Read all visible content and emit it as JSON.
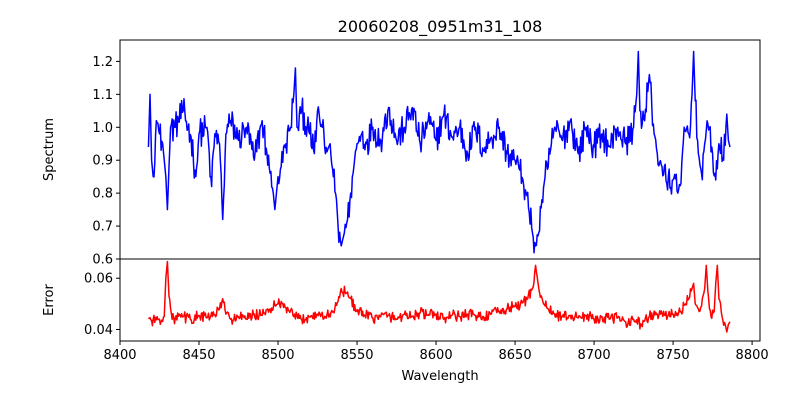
{
  "chart_data": [
    {
      "type": "line",
      "panel": "top",
      "title": "20060208_0951m31_108",
      "ylabel": "Spectrum",
      "xlim": [
        8400,
        8805
      ],
      "ylim": [
        0.6,
        1.265
      ],
      "yticks": [
        0.6,
        0.7,
        0.8,
        0.9,
        1.0,
        1.1,
        1.2
      ],
      "ytick_labels": [
        "0.6",
        "0.7",
        "0.8",
        "0.9",
        "1.0",
        "1.1",
        "1.2"
      ],
      "grid": false,
      "series": [
        {
          "color": "#0000ff",
          "x_start": 8418,
          "x_end": 8786,
          "anchors": [
            [
              8418,
              0.94
            ],
            [
              8419,
              1.1
            ],
            [
              8420,
              0.9
            ],
            [
              8421,
              0.85
            ],
            [
              8423,
              1.02
            ],
            [
              8425,
              0.98
            ],
            [
              8427,
              0.95
            ],
            [
              8428,
              0.9
            ],
            [
              8429,
              0.85
            ],
            [
              8430,
              0.75
            ],
            [
              8432,
              1.0
            ],
            [
              8435,
              1.0
            ],
            [
              8440,
              1.05
            ],
            [
              8445,
              0.97
            ],
            [
              8448,
              0.85
            ],
            [
              8450,
              0.98
            ],
            [
              8455,
              1.0
            ],
            [
              8458,
              0.82
            ],
            [
              8460,
              0.98
            ],
            [
              8463,
              0.95
            ],
            [
              8465,
              0.72
            ],
            [
              8467,
              0.98
            ],
            [
              8470,
              1.02
            ],
            [
              8475,
              0.96
            ],
            [
              8480,
              1.0
            ],
            [
              8485,
              0.9
            ],
            [
              8490,
              1.02
            ],
            [
              8493,
              0.92
            ],
            [
              8495,
              0.86
            ],
            [
              8497,
              0.8
            ],
            [
              8498,
              0.75
            ],
            [
              8499,
              0.8
            ],
            [
              8500,
              0.85
            ],
            [
              8502,
              0.88
            ],
            [
              8505,
              0.95
            ],
            [
              8508,
              1.0
            ],
            [
              8510,
              1.1
            ],
            [
              8511,
              1.18
            ],
            [
              8512,
              1.0
            ],
            [
              8515,
              1.05
            ],
            [
              8520,
              0.98
            ],
            [
              8523,
              0.92
            ],
            [
              8525,
              1.05
            ],
            [
              8528,
              1.0
            ],
            [
              8530,
              0.92
            ],
            [
              8533,
              0.95
            ],
            [
              8535,
              0.85
            ],
            [
              8537,
              0.78
            ],
            [
              8538,
              0.7
            ],
            [
              8540,
              0.64
            ],
            [
              8541,
              0.66
            ],
            [
              8542,
              0.68
            ],
            [
              8544,
              0.72
            ],
            [
              8546,
              0.8
            ],
            [
              8548,
              0.88
            ],
            [
              8550,
              0.95
            ],
            [
              8553,
              0.98
            ],
            [
              8556,
              0.95
            ],
            [
              8560,
              1.0
            ],
            [
              8565,
              0.96
            ],
            [
              8570,
              1.06
            ],
            [
              8575,
              0.96
            ],
            [
              8580,
              1.0
            ],
            [
              8585,
              1.06
            ],
            [
              8590,
              0.95
            ],
            [
              8595,
              1.02
            ],
            [
              8600,
              0.96
            ],
            [
              8605,
              1.04
            ],
            [
              8610,
              0.97
            ],
            [
              8615,
              1.0
            ],
            [
              8620,
              0.92
            ],
            [
              8625,
              1.0
            ],
            [
              8630,
              0.93
            ],
            [
              8635,
              0.97
            ],
            [
              8640,
              1.0
            ],
            [
              8645,
              0.92
            ],
            [
              8650,
              0.9
            ],
            [
              8653,
              0.87
            ],
            [
              8655,
              0.84
            ],
            [
              8657,
              0.8
            ],
            [
              8659,
              0.74
            ],
            [
              8661,
              0.68
            ],
            [
              8663,
              0.64
            ],
            [
              8665,
              0.68
            ],
            [
              8667,
              0.78
            ],
            [
              8669,
              0.85
            ],
            [
              8671,
              0.88
            ],
            [
              8673,
              0.95
            ],
            [
              8675,
              1.0
            ],
            [
              8680,
              0.96
            ],
            [
              8685,
              1.02
            ],
            [
              8690,
              0.92
            ],
            [
              8695,
              1.0
            ],
            [
              8700,
              0.94
            ],
            [
              8705,
              0.98
            ],
            [
              8710,
              0.94
            ],
            [
              8715,
              1.0
            ],
            [
              8720,
              0.95
            ],
            [
              8725,
              1.0
            ],
            [
              8727,
              1.1
            ],
            [
              8728,
              1.23
            ],
            [
              8729,
              1.05
            ],
            [
              8732,
              1.02
            ],
            [
              8735,
              1.16
            ],
            [
              8738,
              0.98
            ],
            [
              8740,
              0.92
            ],
            [
              8743,
              0.88
            ],
            [
              8746,
              0.83
            ],
            [
              8750,
              0.84
            ],
            [
              8753,
              0.8
            ],
            [
              8755,
              0.83
            ],
            [
              8757,
              1.0
            ],
            [
              8760,
              0.98
            ],
            [
              8762,
              1.1
            ],
            [
              8763,
              1.23
            ],
            [
              8764,
              1.08
            ],
            [
              8766,
              0.92
            ],
            [
              8768,
              0.86
            ],
            [
              8770,
              0.95
            ],
            [
              8773,
              1.0
            ],
            [
              8775,
              0.92
            ],
            [
              8777,
              0.84
            ],
            [
              8779,
              0.95
            ],
            [
              8782,
              0.9
            ],
            [
              8784,
              1.04
            ],
            [
              8785,
              0.96
            ],
            [
              8786,
              0.94
            ]
          ]
        }
      ]
    },
    {
      "type": "line",
      "panel": "bottom",
      "xlabel": "Wavelength",
      "ylabel": "Error",
      "xlim": [
        8400,
        8805
      ],
      "ylim": [
        0.0355,
        0.0675
      ],
      "xticks": [
        8400,
        8450,
        8500,
        8550,
        8600,
        8650,
        8700,
        8750,
        8800
      ],
      "xtick_labels": [
        "8400",
        "8450",
        "8500",
        "8550",
        "8600",
        "8650",
        "8700",
        "8750",
        "8800"
      ],
      "yticks": [
        0.04,
        0.06
      ],
      "ytick_labels": [
        "0.04",
        "0.06"
      ],
      "grid": false,
      "series": [
        {
          "color": "#ff0000",
          "x_start": 8418,
          "x_end": 8786,
          "anchors": [
            [
              8418,
              0.0445
            ],
            [
              8420,
              0.0435
            ],
            [
              8425,
              0.044
            ],
            [
              8428,
              0.045
            ],
            [
              8429,
              0.06
            ],
            [
              8430,
              0.0665
            ],
            [
              8431,
              0.053
            ],
            [
              8433,
              0.044
            ],
            [
              8440,
              0.045
            ],
            [
              8445,
              0.0438
            ],
            [
              8450,
              0.0455
            ],
            [
              8455,
              0.0445
            ],
            [
              8460,
              0.0458
            ],
            [
              8463,
              0.048
            ],
            [
              8465,
              0.052
            ],
            [
              8467,
              0.046
            ],
            [
              8470,
              0.044
            ],
            [
              8475,
              0.045
            ],
            [
              8480,
              0.044
            ],
            [
              8485,
              0.046
            ],
            [
              8490,
              0.0455
            ],
            [
              8495,
              0.048
            ],
            [
              8500,
              0.05
            ],
            [
              8505,
              0.0485
            ],
            [
              8510,
              0.045
            ],
            [
              8515,
              0.044
            ],
            [
              8520,
              0.045
            ],
            [
              8525,
              0.046
            ],
            [
              8530,
              0.045
            ],
            [
              8535,
              0.047
            ],
            [
              8538,
              0.051
            ],
            [
              8540,
              0.056
            ],
            [
              8543,
              0.054
            ],
            [
              8546,
              0.052
            ],
            [
              8550,
              0.047
            ],
            [
              8555,
              0.0455
            ],
            [
              8560,
              0.0445
            ],
            [
              8565,
              0.045
            ],
            [
              8570,
              0.0455
            ],
            [
              8575,
              0.044
            ],
            [
              8580,
              0.046
            ],
            [
              8585,
              0.045
            ],
            [
              8590,
              0.0465
            ],
            [
              8595,
              0.0455
            ],
            [
              8600,
              0.046
            ],
            [
              8605,
              0.044
            ],
            [
              8610,
              0.0455
            ],
            [
              8615,
              0.045
            ],
            [
              8620,
              0.046
            ],
            [
              8625,
              0.0455
            ],
            [
              8630,
              0.045
            ],
            [
              8635,
              0.046
            ],
            [
              8640,
              0.047
            ],
            [
              8645,
              0.048
            ],
            [
              8650,
              0.049
            ],
            [
              8655,
              0.0505
            ],
            [
              8658,
              0.052
            ],
            [
              8661,
              0.056
            ],
            [
              8663,
              0.065
            ],
            [
              8665,
              0.056
            ],
            [
              8668,
              0.05
            ],
            [
              8671,
              0.048
            ],
            [
              8675,
              0.046
            ],
            [
              8680,
              0.045
            ],
            [
              8685,
              0.0455
            ],
            [
              8690,
              0.0445
            ],
            [
              8695,
              0.0455
            ],
            [
              8700,
              0.044
            ],
            [
              8705,
              0.045
            ],
            [
              8710,
              0.044
            ],
            [
              8715,
              0.0445
            ],
            [
              8720,
              0.043
            ],
            [
              8725,
              0.044
            ],
            [
              8730,
              0.042
            ],
            [
              8735,
              0.045
            ],
            [
              8740,
              0.046
            ],
            [
              8745,
              0.0455
            ],
            [
              8750,
              0.046
            ],
            [
              8755,
              0.047
            ],
            [
              8758,
              0.05
            ],
            [
              8760,
              0.052
            ],
            [
              8762,
              0.056
            ],
            [
              8763,
              0.058
            ],
            [
              8764,
              0.05
            ],
            [
              8766,
              0.048
            ],
            [
              8768,
              0.049
            ],
            [
              8770,
              0.056
            ],
            [
              8771,
              0.065
            ],
            [
              8772,
              0.055
            ],
            [
              8774,
              0.045
            ],
            [
              8776,
              0.047
            ],
            [
              8777,
              0.058
            ],
            [
              8778,
              0.065
            ],
            [
              8779,
              0.052
            ],
            [
              8781,
              0.045
            ],
            [
              8783,
              0.042
            ],
            [
              8784,
              0.039
            ],
            [
              8785,
              0.042
            ],
            [
              8786,
              0.043
            ]
          ]
        }
      ]
    }
  ]
}
